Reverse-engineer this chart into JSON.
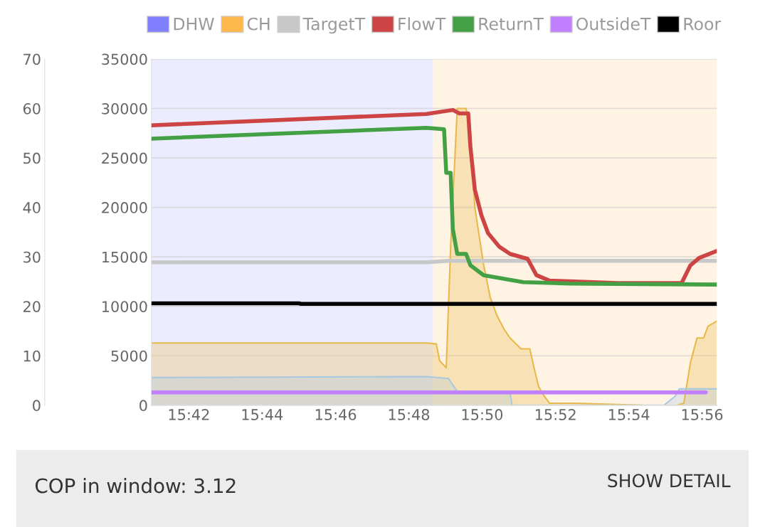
{
  "chart_data": {
    "type": "line",
    "xlim": [
      15.683,
      15.94
    ],
    "xticks": [
      {
        "value": 15.7,
        "label": "15:42"
      },
      {
        "value": 15.7333,
        "label": "15:44"
      },
      {
        "value": 15.7667,
        "label": "15:46"
      },
      {
        "value": 15.8,
        "label": "15:48"
      },
      {
        "value": 15.8333,
        "label": "15:50"
      },
      {
        "value": 15.8667,
        "label": "15:52"
      },
      {
        "value": 15.9,
        "label": "15:54"
      },
      {
        "value": 15.9333,
        "label": "15:56"
      }
    ],
    "ylim": [
      0,
      70
    ],
    "yticks": [
      0,
      10,
      20,
      30,
      40,
      50,
      60,
      70
    ],
    "y2lim": [
      0,
      35000
    ],
    "y2ticks": [
      0,
      5000,
      10000,
      15000,
      20000,
      25000,
      30000,
      35000
    ],
    "grid": true,
    "legend": "top",
    "bands": [
      {
        "axis": "x",
        "from": 15.683,
        "to": 15.811,
        "label": "DHW",
        "color": "#8080ff"
      },
      {
        "axis": "x",
        "from": 15.811,
        "to": 15.94,
        "label": "CH",
        "color": "#ffb84d"
      }
    ],
    "series": [
      {
        "type": "area",
        "axis": "y2",
        "color": "#e8b94a",
        "x": [
          15.683,
          15.808,
          15.8125,
          15.814,
          15.817,
          15.819,
          15.822,
          15.826,
          15.828,
          15.83,
          15.834,
          15.837,
          15.84,
          15.843,
          15.846,
          15.851,
          15.855,
          15.857,
          15.859,
          15.861,
          15.864,
          15.876,
          15.906,
          15.907,
          15.922,
          15.925,
          15.928,
          15.931,
          15.934,
          15.936,
          15.94
        ],
        "values": [
          6300,
          6300,
          6200,
          4500,
          3800,
          16000,
          30000,
          30000,
          27800,
          20000,
          14200,
          10900,
          9100,
          7800,
          6800,
          5700,
          5700,
          3700,
          1900,
          1100,
          200,
          200,
          0,
          null,
          0,
          200,
          4300,
          6800,
          6800,
          8000,
          8500
        ]
      },
      {
        "type": "area",
        "axis": "y2",
        "color": "#a8c8e0",
        "x": [
          15.683,
          15.808,
          15.818,
          15.822,
          15.828,
          15.846,
          15.847,
          15.916,
          15.921,
          15.923,
          15.94
        ],
        "values": [
          2800,
          2900,
          2700,
          1400,
          1200,
          1200,
          0,
          0,
          900,
          1650,
          1650
        ]
      },
      {
        "name": "TargetT",
        "color": "#c8c8c8",
        "x": [
          15.683,
          15.808,
          15.818,
          15.94
        ],
        "values": [
          28.9,
          28.9,
          29.2,
          29.2
        ]
      },
      {
        "name": "FlowT",
        "color": "#cc4444",
        "x": [
          15.683,
          15.808,
          15.82,
          15.823,
          15.827,
          15.828,
          15.83,
          15.833,
          15.836,
          15.841,
          15.846,
          15.854,
          15.858,
          15.864,
          15.895,
          15.924,
          15.928,
          15.932,
          15.94
        ],
        "values": [
          56.6,
          58.9,
          59.7,
          59.0,
          59.0,
          52.2,
          43.6,
          38.4,
          34.8,
          32.1,
          30.6,
          29.6,
          26.3,
          25.2,
          24.7,
          24.7,
          28.3,
          29.8,
          31.2
        ]
      },
      {
        "name": "ReturnT",
        "color": "#44a044",
        "x": [
          15.683,
          15.808,
          15.816,
          15.817,
          15.819,
          15.82,
          15.822,
          15.826,
          15.828,
          15.834,
          15.852,
          15.873,
          15.94
        ],
        "values": [
          53.9,
          56.1,
          55.8,
          47.0,
          47.0,
          35.6,
          30.6,
          30.6,
          28.3,
          26.3,
          24.9,
          24.6,
          24.4
        ]
      },
      {
        "name": "OutsideT",
        "color": "#c080ff",
        "x": [
          15.683,
          15.935
        ],
        "values": [
          2.6,
          2.6
        ]
      },
      {
        "name": "Roor",
        "color": "#000000",
        "x": [
          15.683,
          15.75,
          15.751,
          15.94
        ],
        "values": [
          20.6,
          20.6,
          20.5,
          20.5
        ]
      }
    ],
    "annotations": [
      "COP in window: 3.12",
      "SHOW DETAIL"
    ]
  }
}
